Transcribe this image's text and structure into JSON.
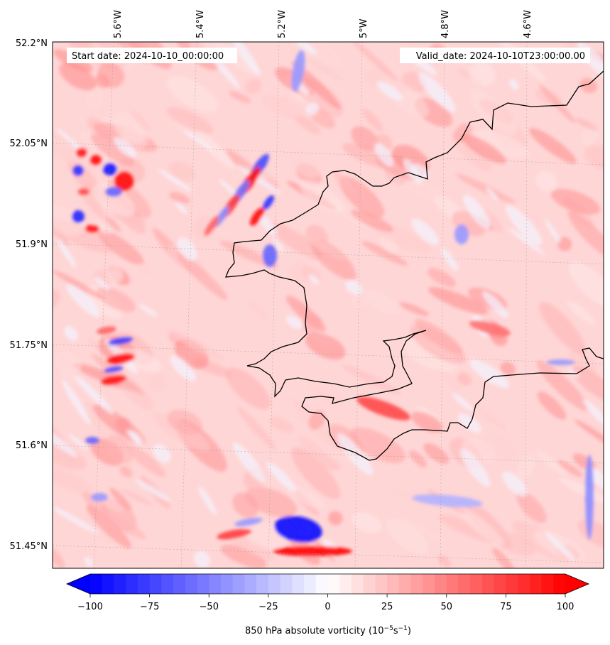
{
  "header": {
    "start_date": "Start date: 2024-10-10_00:00:00",
    "valid_date": "Valid_date: 2024-10-10T23:00:00.00"
  },
  "lon_labels": [
    "5.6°W",
    "5.4°W",
    "5.2°W",
    "5°W",
    "4.8°W",
    "4.6°W"
  ],
  "lat_labels": [
    "52.2°N",
    "52.05°N",
    "51.9°N",
    "51.75°N",
    "51.6°N",
    "51.45°N"
  ],
  "colorbar": {
    "min": -100,
    "max": 100,
    "ticks": [
      "−100",
      "−75",
      "−50",
      "−25",
      "0",
      "25",
      "50",
      "75",
      "100"
    ],
    "label_main": "850 hPa absolute vorticity (10",
    "label_exp1": "−5",
    "label_mid": "s",
    "label_exp2": "−1",
    "label_end": ")",
    "colors": {
      "neg": "#0000ff",
      "zero": "#ffffff",
      "pos": "#ff0000"
    }
  },
  "map": {
    "variable": "850 hPa absolute vorticity",
    "coastline_color": "#000000",
    "features": [
      {
        "kind": "blob",
        "sign": -1,
        "value": -90
      },
      {
        "kind": "blob",
        "sign": 1,
        "value": 90
      }
    ]
  }
}
